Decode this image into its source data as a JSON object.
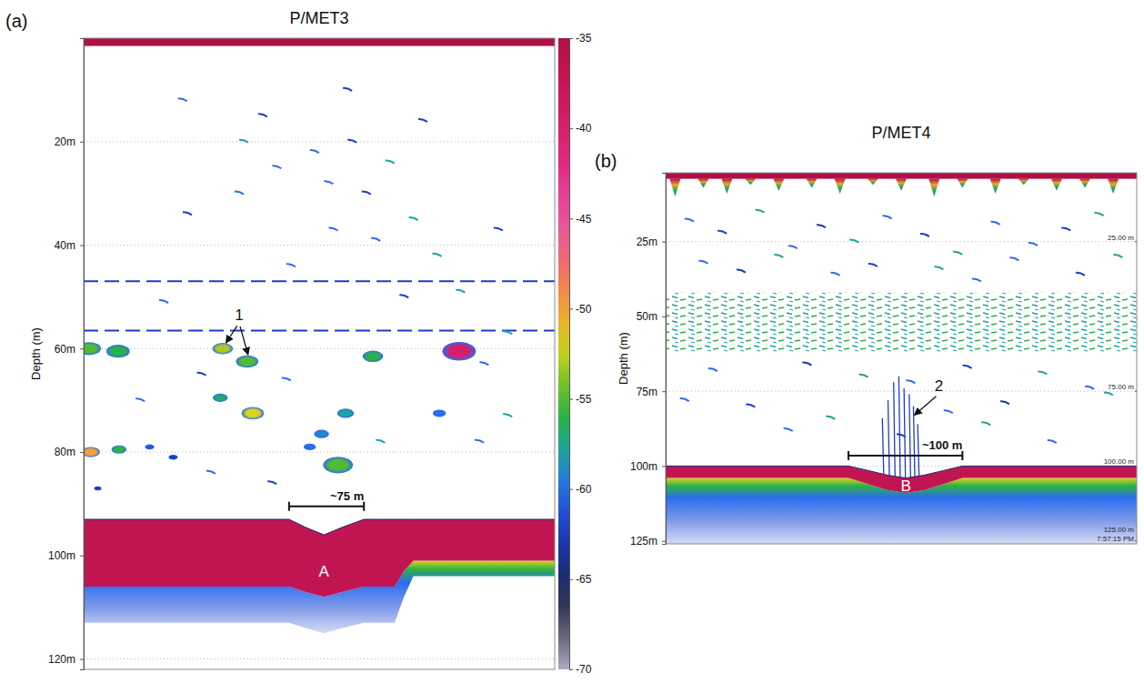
{
  "chart_data": [
    {
      "type": "echogram",
      "panel_label": "(a)",
      "title": "P/MET3",
      "ylabel": "Depth (m)",
      "xlim": [
        0,
        100
      ],
      "ylim": [
        0,
        122
      ],
      "yticks": [
        {
          "value": 20,
          "label": "20m"
        },
        {
          "value": 40,
          "label": "40m"
        },
        {
          "value": 60,
          "label": "60m"
        },
        {
          "value": 80,
          "label": "80m"
        },
        {
          "value": 100,
          "label": "100m"
        },
        {
          "value": 120,
          "label": "120m"
        }
      ],
      "tick_labels": "y",
      "grid": true,
      "colorbar": {
        "range": [
          -70,
          -35
        ],
        "ticks": [
          -35,
          -40,
          -45,
          -50,
          -55,
          -60,
          -65,
          -70
        ]
      },
      "surface": {
        "depth": 1.5,
        "sv": -35
      },
      "line_echoes": {
        "depth": [
          47,
          56.5
        ],
        "sv": -62
      },
      "schools": {
        "x": [
          1.2,
          7.3,
          29.5,
          34.7,
          61.4,
          79.7,
          29,
          35.9,
          55.6,
          75.5,
          50.5,
          48,
          54,
          1.5,
          7.5,
          14,
          19,
          3
        ],
        "depth": [
          60,
          60.5,
          60,
          62.5,
          61.5,
          60.5,
          69.5,
          72.5,
          72.5,
          72.5,
          76.5,
          79,
          82.5,
          80,
          79.5,
          79,
          81,
          87
        ],
        "sv": [
          -55,
          -56,
          -53,
          -55,
          -56,
          -40,
          -57,
          -52,
          -58,
          -60,
          -59,
          -60,
          -55,
          -50,
          -56,
          -61,
          -62,
          -62
        ],
        "size": [
          2.5,
          2.5,
          2.2,
          2.4,
          2.2,
          3.6,
          1.6,
          2.4,
          1.8,
          1.4,
          1.6,
          1.3,
          3.2,
          2,
          1.6,
          1,
          1,
          0.8
        ]
      },
      "targets": {
        "x": [
          21,
          38,
          34,
          49,
          57,
          41,
          65,
          52,
          60,
          70,
          53,
          22,
          62,
          75,
          88,
          44,
          80,
          17,
          68,
          85,
          90,
          25,
          43,
          12,
          90,
          40,
          27,
          63,
          84,
          72,
          33,
          56
        ],
        "depth": [
          12,
          15,
          20,
          22,
          20,
          25,
          24,
          28,
          30,
          35,
          37,
          34,
          39,
          42,
          37,
          44,
          49,
          51,
          50,
          63,
          57,
          65,
          66,
          70,
          73,
          86,
          84,
          78,
          78,
          16,
          30,
          10
        ],
        "sv": [
          -60,
          -62,
          -58,
          -60,
          -62,
          -60,
          -58,
          -60,
          -62,
          -58,
          -60,
          -62,
          -60,
          -58,
          -62,
          -60,
          -58,
          -60,
          -62,
          -60,
          -58,
          -62,
          -60,
          -60,
          -58,
          -62,
          -60,
          -58,
          -60,
          -62,
          -60,
          -62
        ]
      },
      "seabed": {
        "x": [
          0,
          40,
          43.6,
          47,
          51,
          55,
          59.5,
          63,
          66,
          68,
          70,
          100
        ],
        "top": [
          93,
          93,
          93,
          94.5,
          96,
          94.5,
          93,
          93,
          93,
          93,
          93,
          93
        ],
        "base": [
          106,
          106,
          106,
          107,
          108,
          107,
          106,
          106,
          106,
          103,
          101,
          101
        ],
        "tail": [
          113,
          113,
          113,
          114,
          115,
          114,
          113,
          113,
          113,
          108,
          104,
          104
        ],
        "sv": -37
      },
      "scale_bar": {
        "label": "~75 m",
        "x": [
          43.6,
          59.5
        ],
        "depth": 90.5
      },
      "annotations": [
        {
          "text": "1",
          "x": 33,
          "depth": 54.5,
          "points_to": {
            "x": [
              30.2,
              34.9
            ],
            "depth": [
              58.9,
              61.2
            ]
          }
        },
        {
          "text": "A",
          "x": 51,
          "depth": 104
        }
      ]
    },
    {
      "type": "echogram",
      "panel_label": "(b)",
      "title": "P/MET4",
      "ylabel": "Depth (m)",
      "xlim": [
        0,
        100
      ],
      "ylim": [
        2,
        126
      ],
      "yticks": [
        {
          "value": 25,
          "label": "25m"
        },
        {
          "value": 50,
          "label": "50m"
        },
        {
          "value": 75,
          "label": "75m"
        },
        {
          "value": 100,
          "label": "100m"
        },
        {
          "value": 125,
          "label": "125m"
        }
      ],
      "tick_labels": "y",
      "grid": true,
      "surface": {
        "depth": 4,
        "sv": -35
      },
      "surface_spikes": {
        "x": [
          2,
          8,
          13,
          18,
          24,
          31,
          37,
          44,
          50,
          57,
          63,
          70,
          76,
          83,
          89,
          95
        ],
        "depth": [
          10,
          7,
          9,
          6,
          8,
          7,
          9,
          6,
          8,
          10,
          7,
          9,
          6,
          8,
          7,
          9
        ]
      },
      "layer": {
        "top": 42,
        "base": 62,
        "sv": -58
      },
      "targets": {
        "x": [
          5,
          12,
          20,
          27,
          33,
          40,
          47,
          55,
          62,
          70,
          78,
          85,
          92,
          8,
          16,
          24,
          36,
          44,
          58,
          66,
          74,
          88,
          96,
          10,
          30,
          42,
          52,
          64,
          80,
          90,
          4,
          18,
          35,
          60,
          72,
          94,
          26,
          50,
          68,
          82
        ],
        "depth": [
          18,
          22,
          15,
          27,
          20,
          25,
          17,
          23,
          29,
          19,
          26,
          21,
          16,
          32,
          35,
          30,
          36,
          33,
          34,
          38,
          31,
          36,
          30,
          68,
          66,
          70,
          72,
          67,
          69,
          74,
          78,
          80,
          84,
          82,
          79,
          76,
          88,
          90,
          86,
          92
        ],
        "sv": [
          -60,
          -62,
          -57,
          -60,
          -63,
          -58,
          -60,
          -62,
          -57,
          -60,
          -60,
          -62,
          -57,
          -60,
          -63,
          -58,
          -60,
          -62,
          -57,
          -60,
          -60,
          -62,
          -57,
          -60,
          -63,
          -58,
          -60,
          -62,
          -57,
          -60,
          -60,
          -62,
          -57,
          -60,
          -63,
          -58,
          -60,
          -62,
          -57,
          -60
        ]
      },
      "plume": {
        "x": [
          46,
          47.2,
          48.4,
          49.5,
          50.6,
          51.7,
          52.6,
          53.5
        ],
        "top": [
          84,
          78,
          72,
          70,
          74,
          76,
          80,
          86
        ],
        "sv": -62
      },
      "seabed": {
        "x": [
          0,
          30,
          38.8,
          43,
          47,
          51,
          55,
          59,
          63,
          70,
          100
        ],
        "top": [
          100,
          100,
          100,
          101.5,
          103,
          104,
          103,
          101.5,
          100,
          100,
          100
        ],
        "base": [
          104,
          104,
          104,
          106,
          108,
          109,
          108,
          106,
          104,
          104,
          104
        ],
        "tail": [
          126,
          126,
          126,
          126,
          126,
          126,
          126,
          126,
          126,
          126,
          126
        ],
        "sv": -37
      },
      "scale_bar": {
        "label": "~100 m",
        "x": [
          38.8,
          63
        ],
        "depth": 96.5
      },
      "annotations": [
        {
          "text": "2",
          "x": 58,
          "depth": 75,
          "points_to": {
            "x": [
              52.8
            ],
            "depth": [
              83
            ]
          }
        },
        {
          "text": "B",
          "x": 51,
          "depth": 108.5
        }
      ],
      "range_labels": [
        {
          "value": 25,
          "label": "25.00 m"
        },
        {
          "value": 75,
          "label": "75.00 m"
        },
        {
          "value": 100,
          "label": "100.00 m"
        },
        {
          "value": 125,
          "label": "125.00 m"
        }
      ],
      "timestamp": "7:57:15 PM"
    }
  ]
}
